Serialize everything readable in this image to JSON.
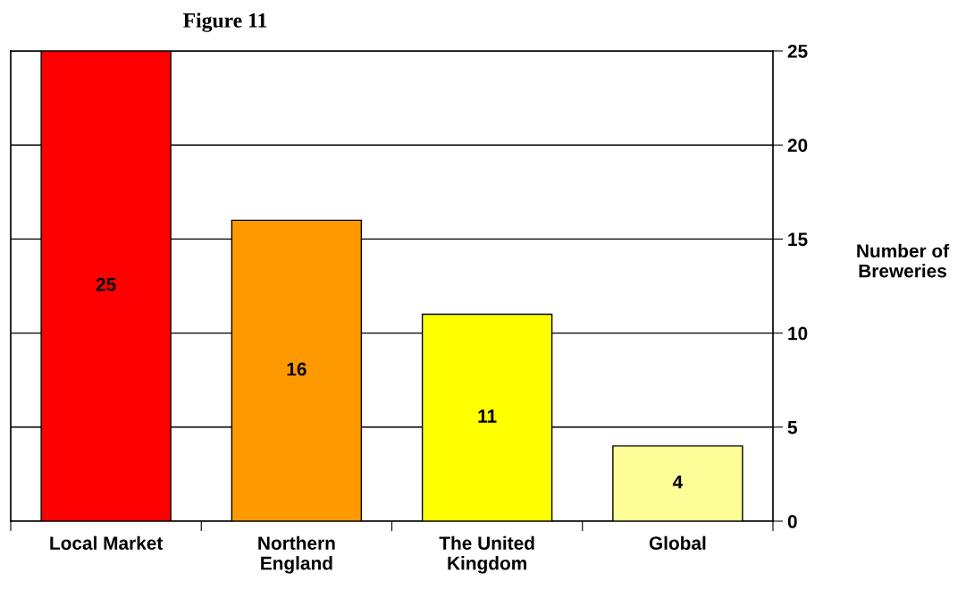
{
  "chart_data": {
    "type": "bar",
    "title": "Figure 11",
    "categories": [
      "Local Market",
      "Northern\nEngland",
      "The United\nKingdom",
      "Global"
    ],
    "values": [
      25,
      16,
      11,
      4
    ],
    "colors": [
      "#ff0000",
      "#ff9900",
      "#ffff00",
      "#ffff99"
    ],
    "ylabel": "Number of\nBreweries",
    "ylim": [
      0,
      25
    ],
    "yticks": [
      0,
      5,
      10,
      15,
      20,
      25
    ],
    "grid": "y",
    "data_labels": true
  }
}
